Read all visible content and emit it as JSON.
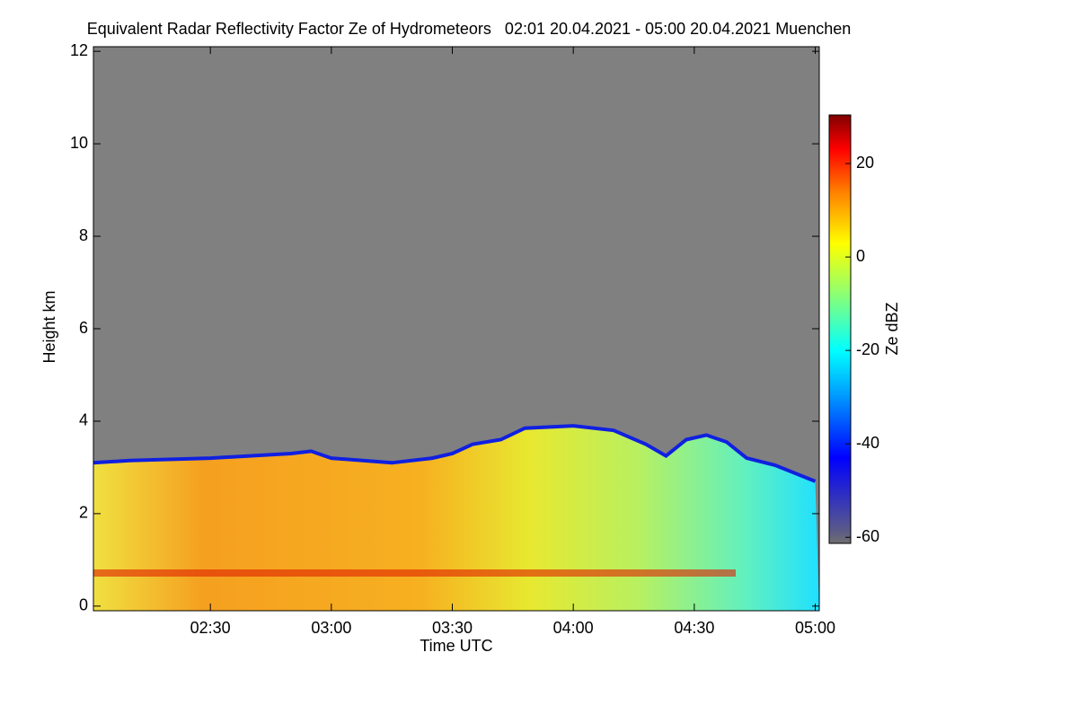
{
  "chart_data": {
    "type": "heatmap",
    "title": "Equivalent Radar Reflectivity Factor Ze of Hydrometeors   02:01 20.04.2021 - 05:00 20.04.2021 Muenchen",
    "xlabel": "Time UTC",
    "ylabel": "Height km",
    "clabel": "Ze dBZ",
    "xlim": [
      121,
      301
    ],
    "xticks": [
      {
        "value": 150,
        "label": "02:30"
      },
      {
        "value": 180,
        "label": "03:00"
      },
      {
        "value": 210,
        "label": "03:30"
      },
      {
        "value": 240,
        "label": "04:00"
      },
      {
        "value": 270,
        "label": "04:30"
      },
      {
        "value": 300,
        "label": "05:00"
      }
    ],
    "ylim": [
      -0.1,
      12.1
    ],
    "yticks": [
      0,
      2,
      4,
      6,
      8,
      10,
      12
    ],
    "clim": [
      -61.3,
      30.4
    ],
    "cticks": [
      -60,
      -40,
      -20,
      0,
      20
    ],
    "x": [
      121,
      130,
      150,
      170,
      175,
      180,
      195,
      205,
      210,
      215,
      222,
      228,
      240,
      250,
      258,
      263,
      268,
      273,
      278,
      283,
      290,
      300
    ],
    "values": [
      3.1,
      3.15,
      3.2,
      3.3,
      3.35,
      3.2,
      3.1,
      3.2,
      3.3,
      3.5,
      3.6,
      3.85,
      3.9,
      3.8,
      3.5,
      3.25,
      3.6,
      3.7,
      3.55,
      3.2,
      3.05,
      2.7
    ],
    "grid": false
  }
}
